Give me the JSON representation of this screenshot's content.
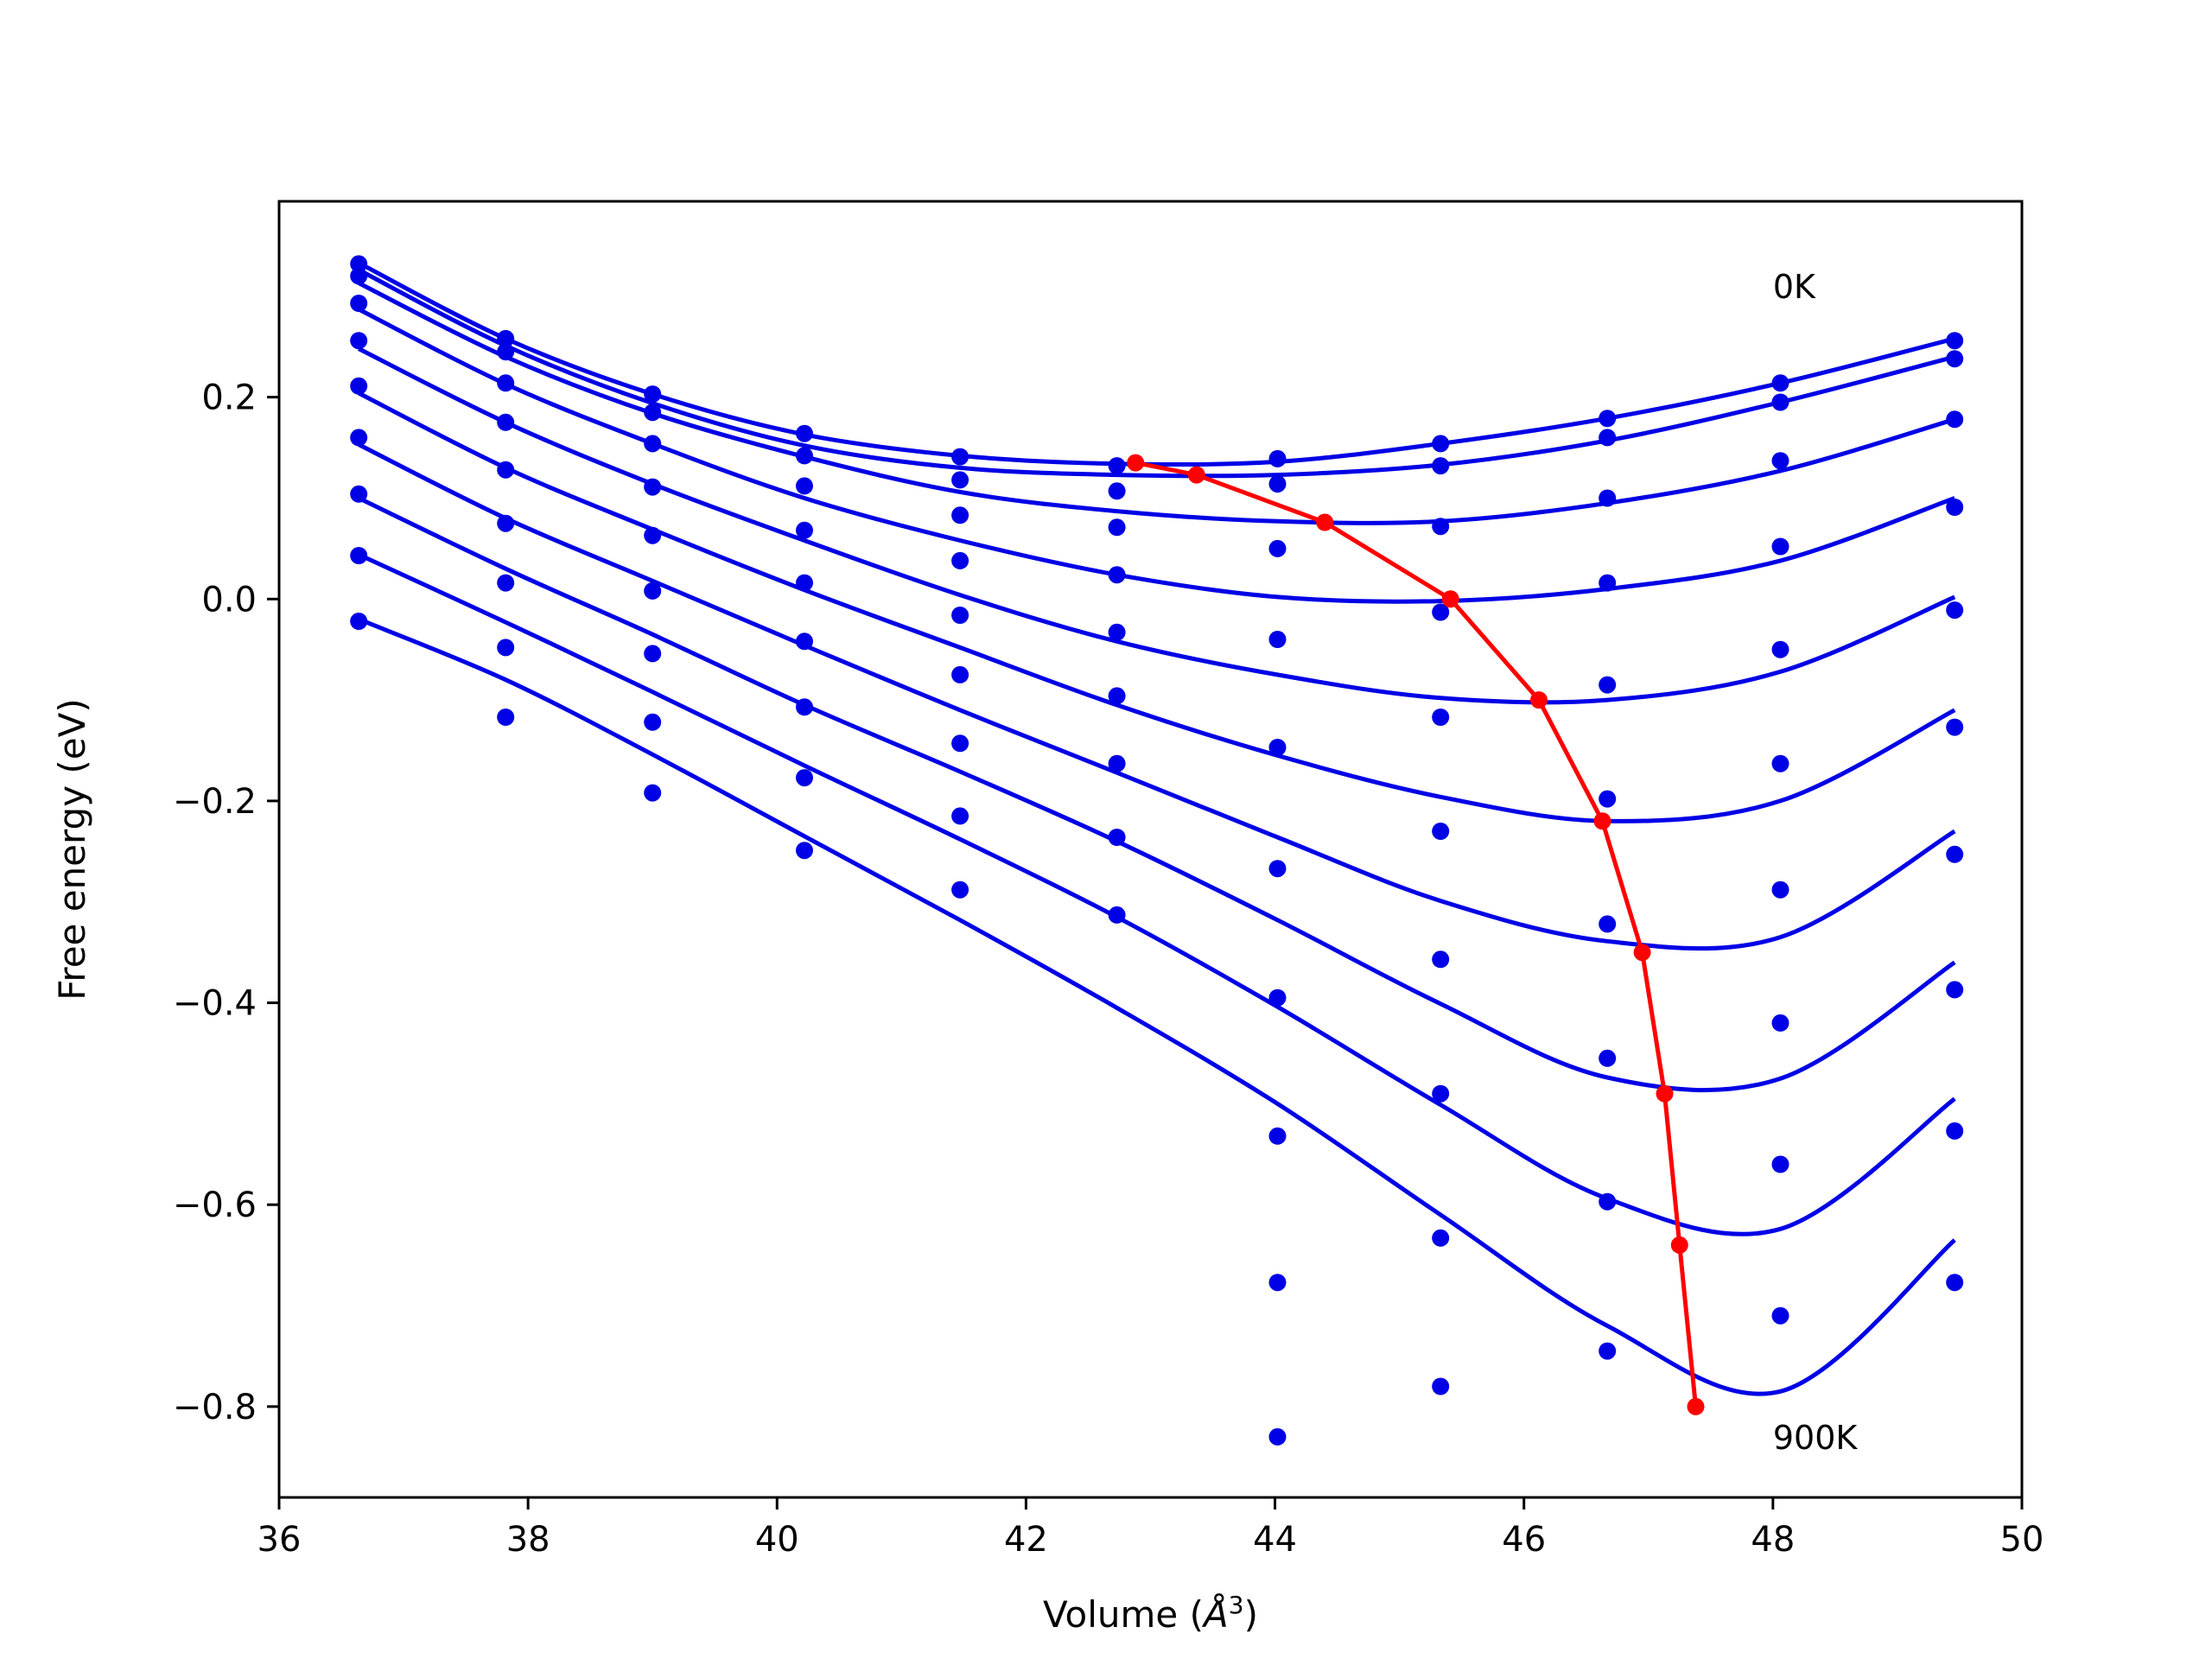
{
  "chart_data": {
    "type": "line",
    "xlabel": "Volume (",
    "xlabel_symbol": "Å",
    "xlabel_exponent": "3",
    "xlabel_close": ")",
    "ylabel": "Free energy (eV)",
    "xlim": [
      36.0,
      50.0
    ],
    "ylim": [
      -0.89,
      0.394
    ],
    "xticks": [
      36,
      38,
      40,
      42,
      44,
      46,
      48,
      50
    ],
    "xtick_labels": [
      "36",
      "38",
      "40",
      "42",
      "44",
      "46",
      "48",
      "50"
    ],
    "yticks": [
      -0.8,
      -0.6,
      -0.4,
      -0.2,
      0.0,
      0.2
    ],
    "ytick_labels": [
      "−0.8",
      "−0.6",
      "−0.4",
      "−0.2",
      "0.0",
      "0.2"
    ],
    "grid": false,
    "annotations": [
      {
        "text": "0K",
        "x": 48.0,
        "y": 0.31
      },
      {
        "text": "900K",
        "x": 48.0,
        "y": -0.83
      }
    ],
    "colors": {
      "fit_curves": "#0000e6",
      "points": "#0000e6",
      "minimum_path": "#ff0000"
    },
    "volumes": [
      36.64,
      37.82,
      39.0,
      40.22,
      41.47,
      42.73,
      44.02,
      45.33,
      46.67,
      48.06,
      49.46
    ],
    "series": [
      {
        "points": [
          0.332,
          0.258,
          0.203,
          0.164,
          0.141,
          0.132,
          0.139,
          0.154,
          0.179,
          0.214,
          0.256
        ],
        "curve": [
          0.333,
          0.258,
          0.203,
          0.163,
          0.142,
          0.134,
          0.136,
          0.154,
          0.179,
          0.214,
          0.258
        ]
      },
      {
        "points": [
          0.32,
          0.245,
          0.185,
          0.142,
          0.118,
          0.107,
          0.114,
          0.132,
          0.16,
          0.195,
          0.238
        ],
        "curve": [
          0.326,
          0.251,
          0.194,
          0.152,
          0.13,
          0.123,
          0.123,
          0.133,
          0.157,
          0.195,
          0.24
        ]
      },
      {
        "points": [
          0.293,
          0.214,
          0.154,
          0.112,
          0.083,
          0.071,
          0.05,
          0.072,
          0.1,
          0.137,
          0.178
        ],
        "curve": [
          0.313,
          0.24,
          0.184,
          0.141,
          0.106,
          0.087,
          0.077,
          0.077,
          0.095,
          0.127,
          0.178
        ]
      },
      {
        "points": [
          0.256,
          0.175,
          0.111,
          0.068,
          0.038,
          0.024,
          -0.04,
          -0.013,
          0.016,
          0.052,
          0.091
        ],
        "curve": [
          0.287,
          0.213,
          0.154,
          0.1,
          0.058,
          0.024,
          0.002,
          -0.002,
          0.01,
          0.038,
          0.1
        ]
      },
      {
        "points": [
          0.211,
          0.128,
          0.063,
          0.016,
          -0.016,
          -0.033,
          -0.147,
          -0.117,
          -0.085,
          -0.05,
          -0.011
        ],
        "curve": [
          0.248,
          0.175,
          0.114,
          0.058,
          0.004,
          -0.042,
          -0.075,
          -0.098,
          -0.1,
          -0.072,
          0.002
        ]
      },
      {
        "points": [
          0.16,
          0.075,
          0.008,
          -0.042,
          -0.075,
          -0.096,
          -0.267,
          -0.23,
          -0.198,
          -0.163,
          -0.127
        ],
        "curve": [
          0.204,
          0.13,
          0.069,
          0.009,
          -0.048,
          -0.105,
          -0.155,
          -0.196,
          -0.22,
          -0.2,
          -0.11
        ]
      },
      {
        "points": [
          0.104,
          0.016,
          -0.054,
          -0.107,
          -0.143,
          -0.163,
          -0.395,
          -0.357,
          -0.322,
          -0.288,
          -0.253
        ],
        "curve": [
          0.153,
          0.08,
          0.018,
          -0.046,
          -0.11,
          -0.172,
          -0.236,
          -0.299,
          -0.339,
          -0.335,
          -0.23
        ]
      },
      {
        "points": [
          0.043,
          -0.048,
          -0.122,
          -0.177,
          -0.215,
          -0.236,
          -0.532,
          -0.49,
          -0.455,
          -0.42,
          -0.387
        ],
        "curve": [
          0.1,
          0.03,
          -0.035,
          -0.105,
          -0.171,
          -0.24,
          -0.318,
          -0.401,
          -0.474,
          -0.475,
          -0.36
        ]
      },
      {
        "points": [
          -0.022,
          -0.117,
          -0.192,
          -0.249,
          -0.288,
          -0.313,
          -0.677,
          -0.633,
          -0.597,
          -0.56,
          -0.527
        ],
        "curve": [
          0.044,
          -0.023,
          -0.092,
          -0.165,
          -0.238,
          -0.315,
          -0.404,
          -0.501,
          -0.594,
          -0.624,
          -0.495
        ]
      },
      {
        "points": [
          null,
          null,
          null,
          null,
          null,
          null,
          -0.83,
          -0.78,
          -0.745,
          -0.71,
          -0.677
        ],
        "curve": [
          -0.02,
          -0.08,
          -0.154,
          -0.235,
          -0.318,
          -0.405,
          -0.5,
          -0.61,
          -0.72,
          -0.785,
          -0.635
        ]
      }
    ],
    "minimum_path": {
      "x": [
        42.88,
        43.37,
        44.4,
        45.41,
        46.12,
        46.63,
        46.95,
        47.13,
        47.25,
        47.38
      ],
      "y": [
        0.135,
        0.123,
        0.076,
        0.0,
        -0.1,
        -0.22,
        -0.35,
        -0.49,
        -0.64,
        -0.8
      ]
    }
  }
}
